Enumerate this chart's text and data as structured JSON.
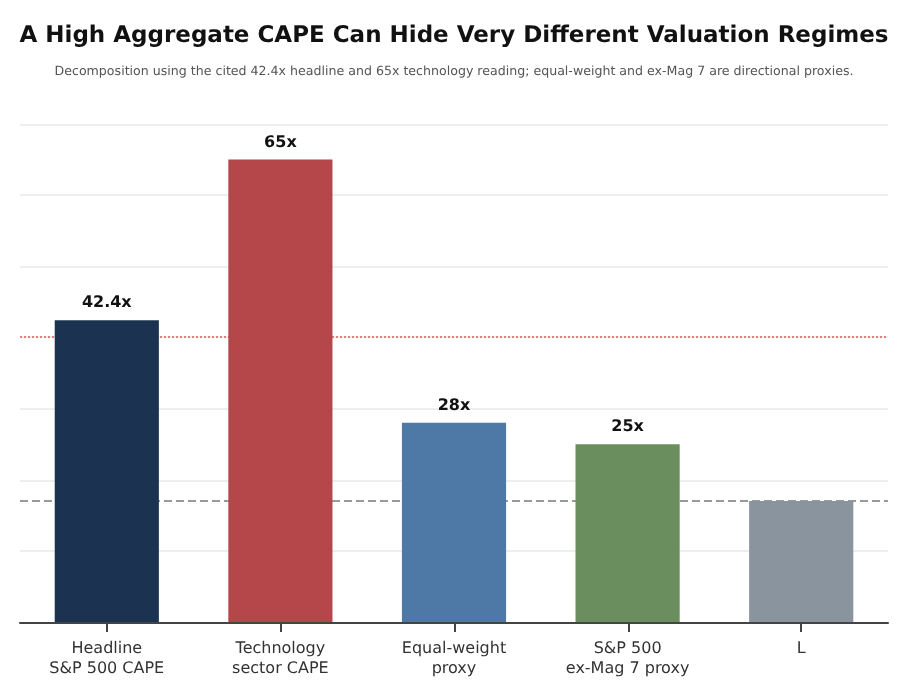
{
  "chart_data": {
    "type": "bar",
    "title": "A High Aggregate CAPE Can Hide Very Different Valuation Regimes",
    "subtitle": "Decomposition using the cited 42.4x headline and 65x technology reading; equal-weight and ex-Mag 7 are directional proxies.",
    "categories": [
      "Headline\nS&P 500 CAPE",
      "Technology\nsector CAPE",
      "Equal-weight\nproxy",
      "S&P 500\nex-Mag 7 proxy",
      "L"
    ],
    "values": [
      42.4,
      65,
      28,
      25,
      17
    ],
    "colors": [
      "#1b3350",
      "#b5474a",
      "#4e79a7",
      "#6b8e5e",
      "#8a949e"
    ],
    "value_labels": [
      "42.4x",
      "65x",
      "28x",
      "25x",
      null
    ],
    "tick_labels": "x",
    "grid": "y",
    "ref_lines": [
      {
        "axis": "y",
        "value": 40,
        "color": "#e08080",
        "line_style": "dotted"
      },
      {
        "axis": "y",
        "value": 17,
        "color": "#999999",
        "line_style": "dashed"
      }
    ]
  }
}
